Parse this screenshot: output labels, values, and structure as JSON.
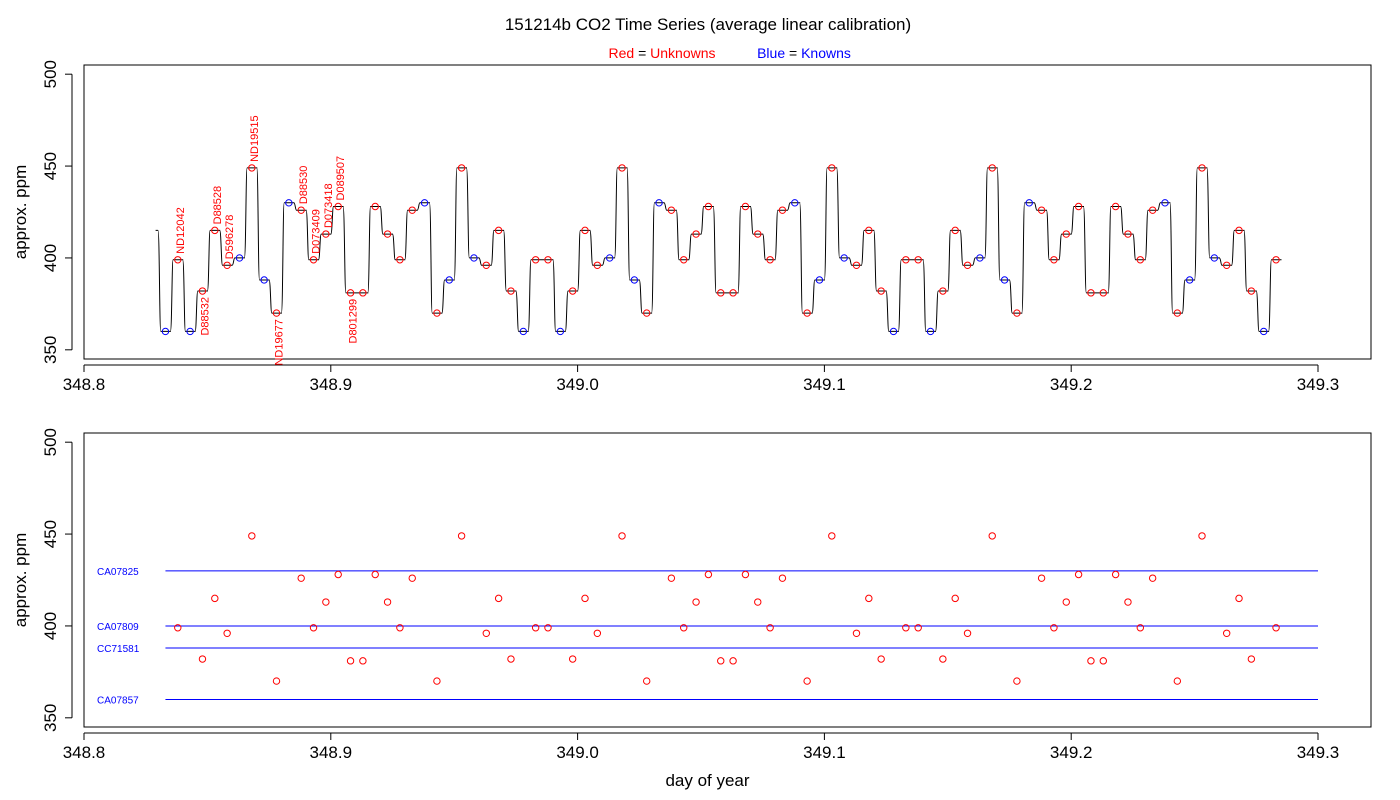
{
  "title": "151214b   CO2 Time Series (average linear calibration)",
  "legend": {
    "red_label": "Red",
    "red_text": "Unknowns",
    "blue_label": "Blue",
    "blue_text": "Knowns",
    "equals": "="
  },
  "colors": {
    "unknown": "#ff0000",
    "known": "#0000ff",
    "trace": "#000000",
    "frame": "#000000"
  },
  "chart_data": [
    {
      "type": "line",
      "panel": "top",
      "xlabel": "",
      "ylabel": "approx. ppm",
      "xlim": [
        348.8,
        349.3
      ],
      "ylim": [
        345,
        505
      ],
      "xticks": [
        348.8,
        348.9,
        349.0,
        349.1,
        349.2,
        349.3
      ],
      "xtick_labels": [
        "348.8",
        "348.9",
        "349.0",
        "349.1",
        "349.2",
        "349.3"
      ],
      "yticks": [
        350,
        400,
        450,
        500
      ],
      "ytick_labels": [
        "350",
        "400",
        "450",
        "500"
      ],
      "trace_start": {
        "x": 348.829,
        "y": 415
      },
      "steps": [
        {
          "x": 348.833,
          "y": 360,
          "kind": "known"
        },
        {
          "x": 348.838,
          "y": 399,
          "kind": "unknown"
        },
        {
          "x": 348.843,
          "y": 360,
          "kind": "known"
        },
        {
          "x": 348.848,
          "y": 382,
          "kind": "unknown"
        },
        {
          "x": 348.853,
          "y": 415,
          "kind": "unknown"
        },
        {
          "x": 348.858,
          "y": 396,
          "kind": "unknown"
        },
        {
          "x": 348.863,
          "y": 400,
          "kind": "known"
        },
        {
          "x": 348.868,
          "y": 449,
          "kind": "unknown"
        },
        {
          "x": 348.873,
          "y": 388,
          "kind": "known"
        },
        {
          "x": 348.878,
          "y": 370,
          "kind": "unknown"
        },
        {
          "x": 348.883,
          "y": 430,
          "kind": "known"
        },
        {
          "x": 348.888,
          "y": 426,
          "kind": "unknown"
        },
        {
          "x": 348.893,
          "y": 399,
          "kind": "unknown"
        },
        {
          "x": 348.898,
          "y": 413,
          "kind": "unknown"
        },
        {
          "x": 348.903,
          "y": 428,
          "kind": "unknown"
        },
        {
          "x": 348.908,
          "y": 381,
          "kind": "unknown"
        },
        {
          "x": 348.913,
          "y": 381,
          "kind": "unknown"
        },
        {
          "x": 348.918,
          "y": 428,
          "kind": "unknown"
        },
        {
          "x": 348.923,
          "y": 413,
          "kind": "unknown"
        },
        {
          "x": 348.928,
          "y": 399,
          "kind": "unknown"
        },
        {
          "x": 348.933,
          "y": 426,
          "kind": "unknown"
        },
        {
          "x": 348.938,
          "y": 430,
          "kind": "known"
        },
        {
          "x": 348.943,
          "y": 370,
          "kind": "unknown"
        },
        {
          "x": 348.948,
          "y": 388,
          "kind": "known"
        },
        {
          "x": 348.953,
          "y": 449,
          "kind": "unknown"
        },
        {
          "x": 348.958,
          "y": 400,
          "kind": "known"
        },
        {
          "x": 348.963,
          "y": 396,
          "kind": "unknown"
        },
        {
          "x": 348.968,
          "y": 415,
          "kind": "unknown"
        },
        {
          "x": 348.973,
          "y": 382,
          "kind": "unknown"
        },
        {
          "x": 348.978,
          "y": 360,
          "kind": "known"
        },
        {
          "x": 348.983,
          "y": 399,
          "kind": "unknown"
        },
        {
          "x": 348.988,
          "y": 399,
          "kind": "unknown"
        },
        {
          "x": 348.993,
          "y": 360,
          "kind": "known"
        },
        {
          "x": 348.998,
          "y": 382,
          "kind": "unknown"
        },
        {
          "x": 349.003,
          "y": 415,
          "kind": "unknown"
        },
        {
          "x": 349.008,
          "y": 396,
          "kind": "unknown"
        },
        {
          "x": 349.013,
          "y": 400,
          "kind": "known"
        },
        {
          "x": 349.018,
          "y": 449,
          "kind": "unknown"
        },
        {
          "x": 349.023,
          "y": 388,
          "kind": "known"
        },
        {
          "x": 349.028,
          "y": 370,
          "kind": "unknown"
        },
        {
          "x": 349.033,
          "y": 430,
          "kind": "known"
        },
        {
          "x": 349.038,
          "y": 426,
          "kind": "unknown"
        },
        {
          "x": 349.043,
          "y": 399,
          "kind": "unknown"
        },
        {
          "x": 349.048,
          "y": 413,
          "kind": "unknown"
        },
        {
          "x": 349.053,
          "y": 428,
          "kind": "unknown"
        },
        {
          "x": 349.058,
          "y": 381,
          "kind": "unknown"
        },
        {
          "x": 349.063,
          "y": 381,
          "kind": "unknown"
        },
        {
          "x": 349.068,
          "y": 428,
          "kind": "unknown"
        },
        {
          "x": 349.073,
          "y": 413,
          "kind": "unknown"
        },
        {
          "x": 349.078,
          "y": 399,
          "kind": "unknown"
        },
        {
          "x": 349.083,
          "y": 426,
          "kind": "unknown"
        },
        {
          "x": 349.088,
          "y": 430,
          "kind": "known"
        },
        {
          "x": 349.093,
          "y": 370,
          "kind": "unknown"
        },
        {
          "x": 349.098,
          "y": 388,
          "kind": "known"
        },
        {
          "x": 349.103,
          "y": 449,
          "kind": "unknown"
        },
        {
          "x": 349.108,
          "y": 400,
          "kind": "known"
        },
        {
          "x": 349.113,
          "y": 396,
          "kind": "unknown"
        },
        {
          "x": 349.118,
          "y": 415,
          "kind": "unknown"
        },
        {
          "x": 349.123,
          "y": 382,
          "kind": "unknown"
        },
        {
          "x": 349.128,
          "y": 360,
          "kind": "known"
        },
        {
          "x": 349.133,
          "y": 399,
          "kind": "unknown"
        },
        {
          "x": 349.138,
          "y": 399,
          "kind": "unknown"
        },
        {
          "x": 349.143,
          "y": 360,
          "kind": "known"
        },
        {
          "x": 349.148,
          "y": 382,
          "kind": "unknown"
        },
        {
          "x": 349.153,
          "y": 415,
          "kind": "unknown"
        },
        {
          "x": 349.158,
          "y": 396,
          "kind": "unknown"
        },
        {
          "x": 349.163,
          "y": 400,
          "kind": "known"
        },
        {
          "x": 349.168,
          "y": 449,
          "kind": "unknown"
        },
        {
          "x": 349.173,
          "y": 388,
          "kind": "known"
        },
        {
          "x": 349.178,
          "y": 370,
          "kind": "unknown"
        },
        {
          "x": 349.183,
          "y": 430,
          "kind": "known"
        },
        {
          "x": 349.188,
          "y": 426,
          "kind": "unknown"
        },
        {
          "x": 349.193,
          "y": 399,
          "kind": "unknown"
        },
        {
          "x": 349.198,
          "y": 413,
          "kind": "unknown"
        },
        {
          "x": 349.203,
          "y": 428,
          "kind": "unknown"
        },
        {
          "x": 349.208,
          "y": 381,
          "kind": "unknown"
        },
        {
          "x": 349.213,
          "y": 381,
          "kind": "unknown"
        },
        {
          "x": 349.218,
          "y": 428,
          "kind": "unknown"
        },
        {
          "x": 349.223,
          "y": 413,
          "kind": "unknown"
        },
        {
          "x": 349.228,
          "y": 399,
          "kind": "unknown"
        },
        {
          "x": 349.233,
          "y": 426,
          "kind": "unknown"
        },
        {
          "x": 349.238,
          "y": 430,
          "kind": "known"
        },
        {
          "x": 349.243,
          "y": 370,
          "kind": "unknown"
        },
        {
          "x": 349.248,
          "y": 388,
          "kind": "known"
        },
        {
          "x": 349.253,
          "y": 449,
          "kind": "unknown"
        },
        {
          "x": 349.258,
          "y": 400,
          "kind": "known"
        },
        {
          "x": 349.263,
          "y": 396,
          "kind": "unknown"
        },
        {
          "x": 349.268,
          "y": 415,
          "kind": "unknown"
        },
        {
          "x": 349.273,
          "y": 382,
          "kind": "unknown"
        },
        {
          "x": 349.278,
          "y": 360,
          "kind": "known"
        },
        {
          "x": 349.283,
          "y": 399,
          "kind": "unknown"
        }
      ],
      "sample_labels": [
        {
          "text": "ND12042",
          "x": 348.838,
          "y": 399
        },
        {
          "text": "D88532",
          "x": 348.848,
          "y": 382
        },
        {
          "text": "D88528",
          "x": 348.853,
          "y": 415
        },
        {
          "text": "D596278",
          "x": 348.858,
          "y": 396
        },
        {
          "text": "ND19515",
          "x": 348.868,
          "y": 449
        },
        {
          "text": "ND19677",
          "x": 348.878,
          "y": 370
        },
        {
          "text": "D88530",
          "x": 348.888,
          "y": 426
        },
        {
          "text": "D073409",
          "x": 348.893,
          "y": 399
        },
        {
          "text": "D073418",
          "x": 348.898,
          "y": 413
        },
        {
          "text": "D089507",
          "x": 348.903,
          "y": 428
        },
        {
          "text": "D801299",
          "x": 348.908,
          "y": 381
        }
      ]
    },
    {
      "type": "scatter",
      "panel": "bottom",
      "xlabel": "day of year",
      "ylabel": "approx. ppm",
      "xlim": [
        348.8,
        349.3
      ],
      "ylim": [
        345,
        505
      ],
      "xticks": [
        348.8,
        348.9,
        349.0,
        349.1,
        349.2,
        349.3
      ],
      "xtick_labels": [
        "348.8",
        "348.9",
        "349.0",
        "349.1",
        "349.2",
        "349.3"
      ],
      "yticks": [
        350,
        400,
        450,
        500
      ],
      "ytick_labels": [
        "350",
        "400",
        "450",
        "500"
      ],
      "reference_lines": [
        {
          "name": "CA07825",
          "y": 430,
          "x": [
            348.833,
            349.3
          ]
        },
        {
          "name": "CA07809",
          "y": 400,
          "x": [
            348.833,
            349.3
          ]
        },
        {
          "name": "CC71581",
          "y": 388,
          "x": [
            348.833,
            349.3
          ]
        },
        {
          "name": "CA07857",
          "y": 360,
          "x": [
            348.833,
            349.3
          ]
        }
      ]
    }
  ]
}
